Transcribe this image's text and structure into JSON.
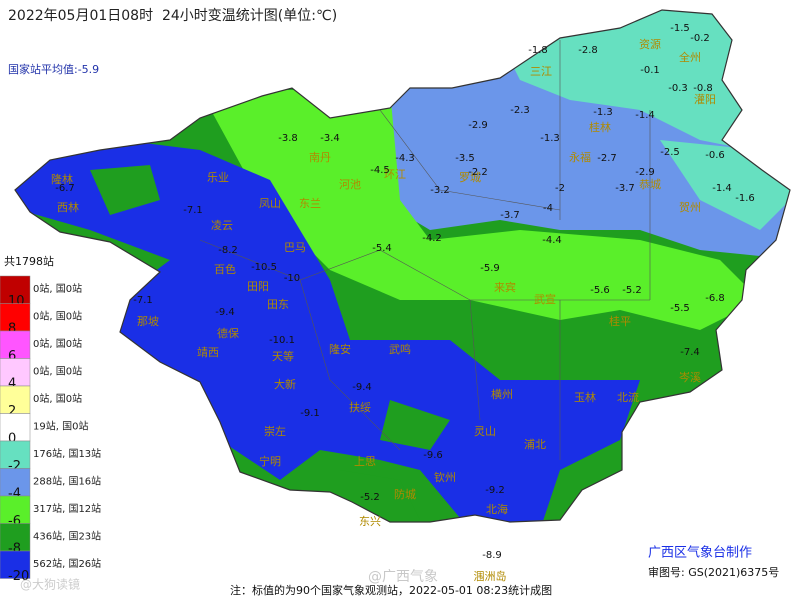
{
  "header": {
    "title": "2022年05月01日08时  24小时变温统计图(单位:℃)",
    "average": "国家站平均值:-5.9"
  },
  "legend": {
    "total": "共1798站",
    "items": [
      {
        "count": "0站, 国0站",
        "tick": "10",
        "color": "#c00000"
      },
      {
        "count": "0站, 国0站",
        "tick": "8",
        "color": "#ff0000"
      },
      {
        "count": "0站, 国0站",
        "tick": "6",
        "color": "#ff55ff"
      },
      {
        "count": "0站, 国0站",
        "tick": "4",
        "color": "#ffc8ff"
      },
      {
        "count": "0站, 国0站",
        "tick": "2",
        "color": "#ffff99"
      },
      {
        "count": "19站, 国0站",
        "tick": "0",
        "color": "#ffffff"
      },
      {
        "count": "176站, 国13站",
        "tick": "-2",
        "color": "#66e0c0"
      },
      {
        "count": "288站, 国16站",
        "tick": "-4",
        "color": "#6b96ea"
      },
      {
        "count": "317站, 国12站",
        "tick": "-6",
        "color": "#5aef2a"
      },
      {
        "count": "436站, 国23站",
        "tick": "-8",
        "color": "#1f9e1f"
      },
      {
        "count": "562站, 国26站",
        "tick": "-20",
        "color": "#1a2fe6"
      }
    ]
  },
  "map": {
    "places": [
      "隆林",
      "西林",
      "乐业",
      "凌云",
      "凤山",
      "东兰",
      "南丹",
      "河池",
      "环江",
      "罗城",
      "三江",
      "资源",
      "全州",
      "灌阳",
      "桂林",
      "永福",
      "恭城",
      "贺州",
      "来宾",
      "武宣",
      "桂平",
      "横州",
      "灵山",
      "浦北",
      "玉林",
      "北流",
      "岑溪",
      "钦州",
      "防城",
      "东兴",
      "北海",
      "涠洲岛",
      "上思",
      "崇左",
      "宁明",
      "扶绥",
      "大新",
      "天等",
      "德保",
      "靖西",
      "那坡",
      "田阳",
      "田东",
      "巴马",
      "百色",
      "隆安",
      "武鸣"
    ],
    "values": [
      "-1.5",
      "-0.2",
      "-2.8",
      "-1.8",
      "-0.1",
      "-0.8",
      "-0.3",
      "-1.3",
      "-1.4",
      "-2.3",
      "-2.9",
      "-1.3",
      "-2.5",
      "-0.6",
      "-2.7",
      "-2.9",
      "-3.7",
      "-1.4",
      "-1.6",
      "-3.5",
      "-2.2",
      "-3.2",
      "-2",
      "-3.7",
      "-4",
      "-4.3",
      "-4.5",
      "-3.8",
      "-3.4",
      "-6.7",
      "-7.1",
      "-8.2",
      "-10.5",
      "-10",
      "-5.4",
      "-4.2",
      "-5.9",
      "-4.4",
      "-5.6",
      "-5.2",
      "-5.5",
      "-6.8",
      "-7.1",
      "-9.4",
      "-10.1",
      "-9.4",
      "-9.1",
      "-9.6",
      "-9.2",
      "-5.2",
      "-8.9",
      "-7.4"
    ]
  },
  "footer": {
    "note": "注：标值的为90个国家气象观测站，2022-05-01 08:23统计成图",
    "producer": "广西区气象台制作",
    "approval": "审图号: GS(2021)6375号",
    "watermark": "@广西气象",
    "corner": "@大狗读镜"
  }
}
